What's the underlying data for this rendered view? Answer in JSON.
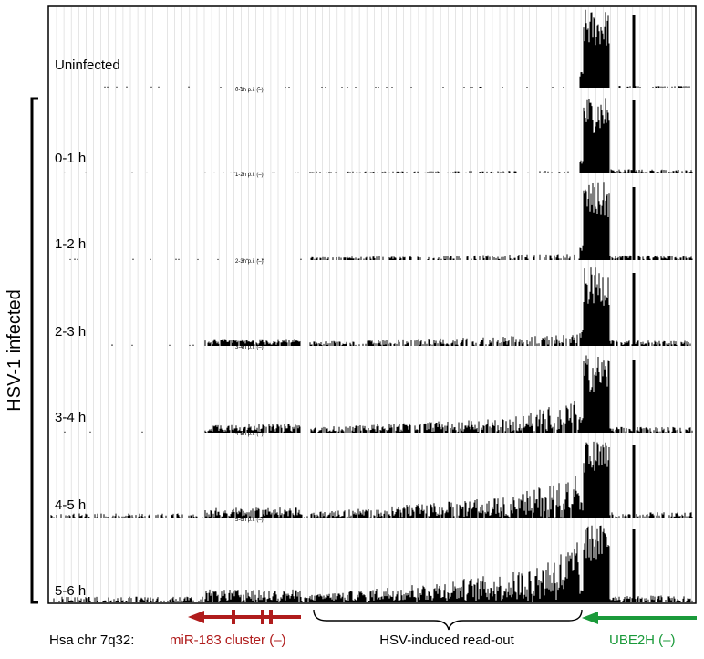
{
  "tracks": [
    {
      "id": "uninfected",
      "label": "Uninfected",
      "subtitle": "0-1h p.i. (–)",
      "level": 0
    },
    {
      "id": "0-1h",
      "label": "0-1 h",
      "subtitle": "1-2h p.i. (–)",
      "level": 1
    },
    {
      "id": "1-2h",
      "label": "1-2 h",
      "subtitle": "2-3h p.i. (–)",
      "level": 2
    },
    {
      "id": "2-3h",
      "label": "2-3 h",
      "subtitle": "3-4h p.i. (–)",
      "level": 3
    },
    {
      "id": "3-4h",
      "label": "3-4 h",
      "subtitle": "4-5h p.i. (–)",
      "level": 4
    },
    {
      "id": "4-5h",
      "label": "4-5 h",
      "subtitle": "5-6h p.i. (–)",
      "level": 5
    },
    {
      "id": "5-6h",
      "label": "5-6 h",
      "subtitle": "",
      "level": 6
    }
  ],
  "group_label": "HSV-1 infected",
  "annotations": {
    "chromosome": "Hsa chr 7q32:",
    "mir_cluster": "miR-183 cluster (–)",
    "readout": "HSV-induced read-out",
    "ube2h": "UBE2H (–)"
  },
  "colors": {
    "signal": "#000000",
    "grid": "#d4d4d4",
    "mir_cluster": "#b01c1c",
    "ube2h": "#1a9a3a",
    "text": "#000000"
  }
}
